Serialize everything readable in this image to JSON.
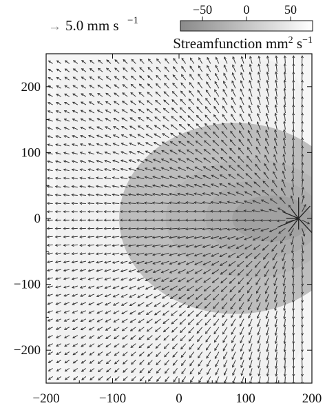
{
  "chart_data": {
    "type": "heatmap",
    "title": "",
    "xlabel": "",
    "ylabel": "",
    "xlim": [
      -200,
      200
    ],
    "ylim": [
      -250,
      250
    ],
    "x_ticks": [
      -200,
      -100,
      0,
      100,
      200
    ],
    "y_ticks": [
      -200,
      -100,
      0,
      100,
      200
    ],
    "x_tick_labels": [
      "−200",
      "−100",
      "0",
      "100",
      "200"
    ],
    "y_tick_labels": [
      "−200",
      "−100",
      "0",
      "100",
      "200"
    ],
    "grid": false,
    "contour_levels": [
      {
        "psi": -10,
        "x": [
          -90,
          260
        ],
        "y": [
          -145,
          145
        ]
      },
      {
        "psi": -20,
        "x": [
          -20,
          235
        ],
        "y": [
          -90,
          90
        ]
      },
      {
        "psi": -30,
        "x": [
          40,
          215
        ],
        "y": [
          -60,
          60
        ]
      },
      {
        "psi": -45,
        "x": [
          80,
          200
        ],
        "y": [
          -35,
          35
        ]
      }
    ],
    "vector_scale": {
      "arrow_glyph": "→",
      "label": "5.0 mm s",
      "exponent": "−1",
      "value_mm_per_s": 5.0
    },
    "colorbar": {
      "label_main": "Streamfunction mm",
      "label_sup1": "2",
      "label_mid": " s",
      "label_sup2": "−1",
      "ticks": [
        -50,
        0,
        50
      ],
      "tick_labels": [
        "−50",
        "0",
        "50"
      ],
      "range": [
        -75,
        75
      ],
      "color_min": "#8a8a8a",
      "color_max": "#ffffff",
      "placement": "top-right"
    },
    "source": {
      "x": 180,
      "y": 0,
      "description": "strong outward flow near right edge"
    }
  }
}
